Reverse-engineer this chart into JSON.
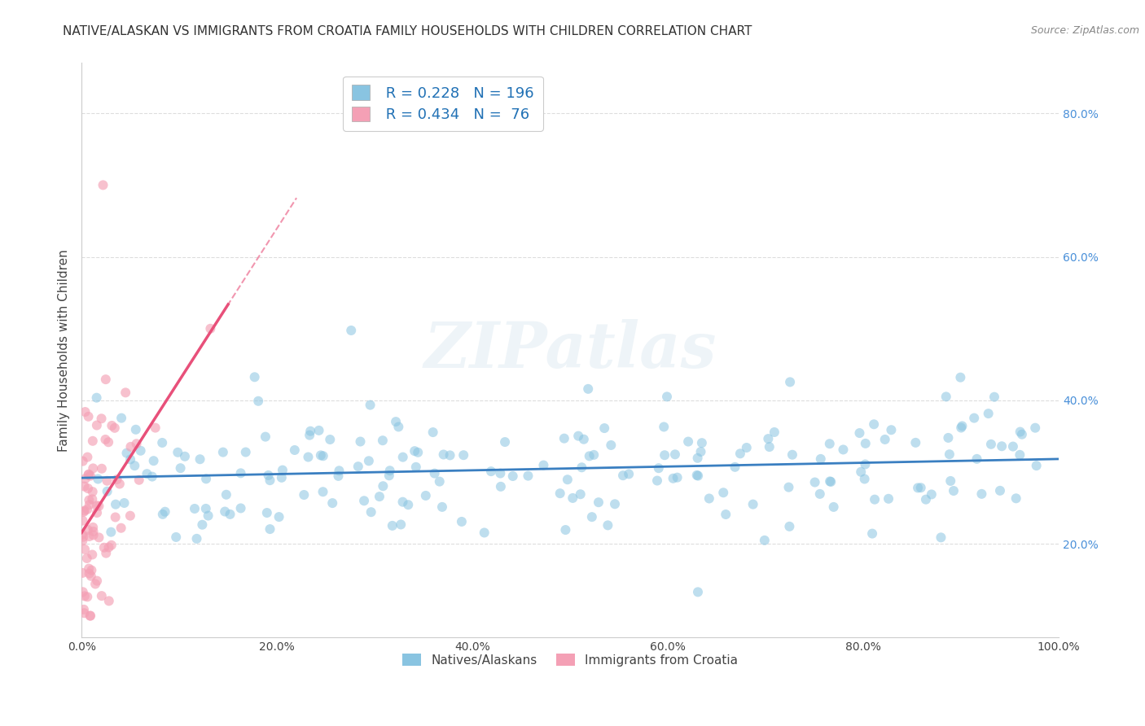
{
  "title": "NATIVE/ALASKAN VS IMMIGRANTS FROM CROATIA FAMILY HOUSEHOLDS WITH CHILDREN CORRELATION CHART",
  "source": "Source: ZipAtlas.com",
  "ylabel": "Family Households with Children",
  "blue_color": "#89c4e1",
  "pink_color": "#f4a0b5",
  "blue_line_color": "#3a7fc1",
  "pink_line_color": "#e8507a",
  "legend_r1": "R = 0.228",
  "legend_n1": "N = 196",
  "legend_r2": "R = 0.434",
  "legend_n2": "N =  76",
  "R_blue": 0.228,
  "N_blue": 196,
  "R_pink": 0.434,
  "N_pink": 76,
  "watermark": "ZIPatlas",
  "title_fontsize": 11,
  "label_fontsize": 11,
  "tick_fontsize": 10,
  "legend_fontsize": 13,
  "xlim": [
    0.0,
    1.0
  ],
  "ylim_low": 0.07,
  "ylim_high": 0.87,
  "yticks": [
    0.2,
    0.4,
    0.6,
    0.8
  ],
  "ytick_labels": [
    "20.0%",
    "40.0%",
    "60.0%",
    "80.0%"
  ],
  "xticks": [
    0.0,
    0.2,
    0.4,
    0.6,
    0.8,
    1.0
  ],
  "xtick_labels": [
    "0.0%",
    "20.0%",
    "40.0%",
    "60.0%",
    "80.0%",
    "100.0%"
  ],
  "legend1_label": " R = 0.228   N = 196",
  "legend2_label": " R = 0.434   N =  76",
  "bottom_legend1": "Natives/Alaskans",
  "bottom_legend2": "Immigrants from Croatia"
}
